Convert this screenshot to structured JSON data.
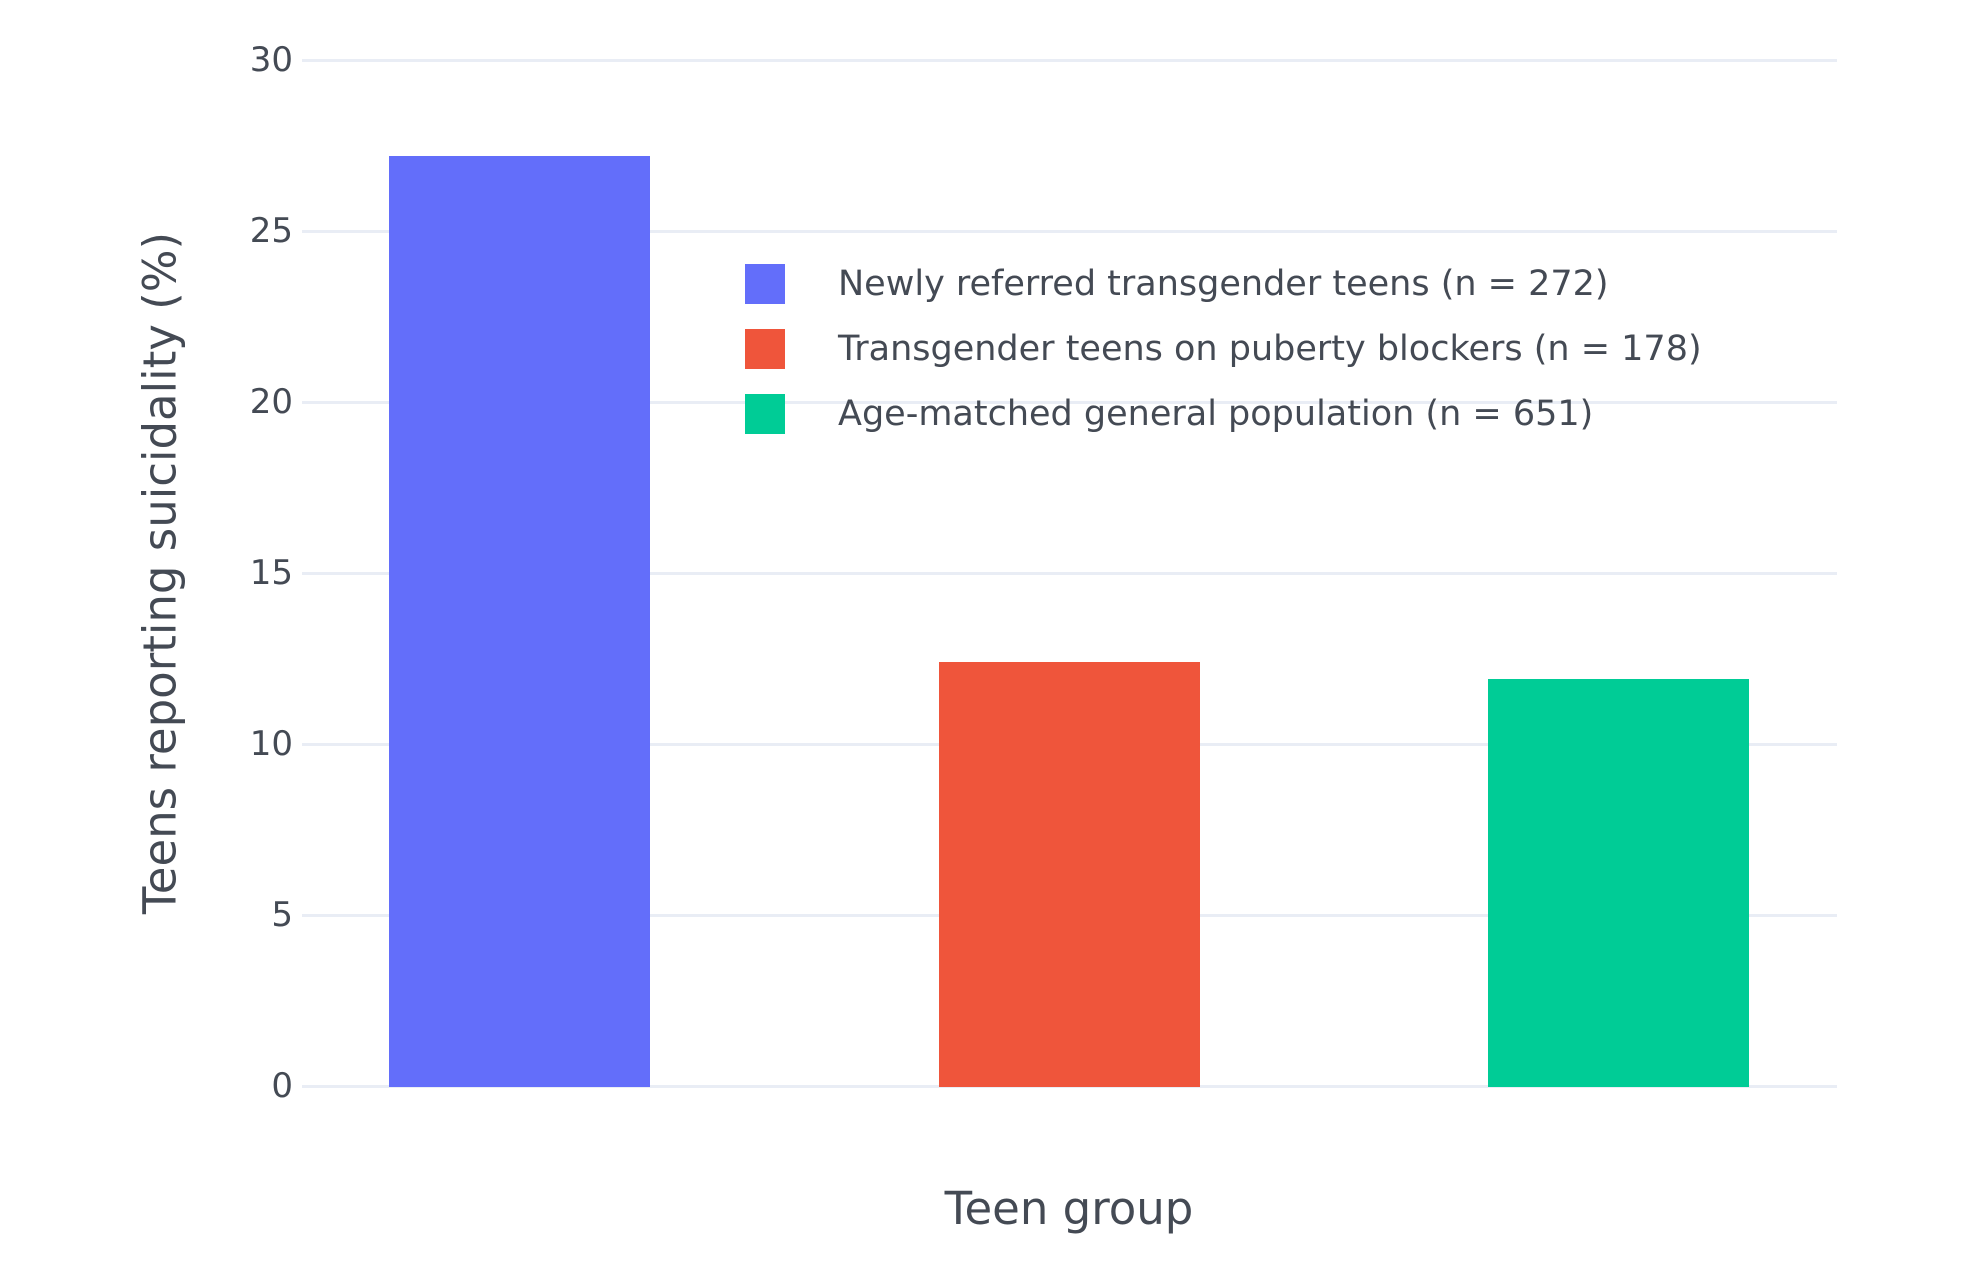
{
  "chart_data": {
    "type": "bar",
    "title": "",
    "xlabel": "Teen group",
    "ylabel": "Teens reporting suicidality (%)",
    "ylim": [
      0,
      30
    ],
    "yticks": [
      0,
      5,
      10,
      15,
      20,
      25,
      30
    ],
    "grid": true,
    "legend_position": "inside-top-center-right",
    "background_color": "#ffffff",
    "gridline_color": "#e9edf5",
    "text_color": "#444a54",
    "categories": [
      "Newly referred transgender teens (n = 272)",
      "Transgender teens on puberty blockers (n = 178)",
      "Age-matched general population (n = 651)"
    ],
    "series": [
      {
        "name": "Newly referred transgender teens (n = 272)",
        "value": 27.2,
        "color": "#636EFA"
      },
      {
        "name": "Transgender teens on puberty blockers (n = 178)",
        "value": 12.4,
        "color": "#EF553B"
      },
      {
        "name": "Age-matched general population (n = 651)",
        "value": 11.9,
        "color": "#00CC96"
      }
    ]
  }
}
